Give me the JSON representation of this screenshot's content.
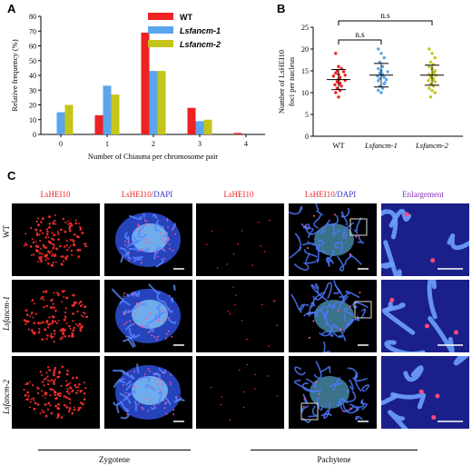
{
  "panels": {
    "a": "A",
    "b": "B",
    "c": "C"
  },
  "colors": {
    "wt": "#ee2222",
    "m1": "#5aa5ec",
    "m2": "#c4c41a",
    "red": "#ff3030",
    "blue": "#3f5fe8",
    "dapi_title": "#3333cc"
  },
  "chart_data": [
    {
      "type": "bar",
      "categories": [
        "0",
        "1",
        "2",
        "3",
        "4"
      ],
      "series": [
        {
          "name": "WT",
          "values": [
            0,
            13,
            69,
            18,
            1
          ]
        },
        {
          "name": "Lsfancm-1",
          "values": [
            15,
            33,
            43,
            9,
            0
          ]
        },
        {
          "name": "Lsfancm-2",
          "values": [
            20,
            27,
            43,
            10,
            0
          ]
        }
      ],
      "xlabel": "Number of Chiasma per chromosome pair",
      "ylabel": "Relative frequency (%)",
      "ylim": [
        0,
        80
      ],
      "yticks": [
        "0",
        "10",
        "20",
        "30",
        "40",
        "50",
        "60",
        "70",
        "80"
      ],
      "legend": "top-right"
    },
    {
      "type": "scatter",
      "categories": [
        "WT",
        "Lsfancm-1",
        "Lsfancm-2"
      ],
      "ylabel": "Number of LsHEI10 foci per nucleus",
      "ylim": [
        0,
        25
      ],
      "yticks": [
        "0",
        "5",
        "10",
        "15",
        "20",
        "25"
      ],
      "groups": [
        {
          "name": "WT",
          "mean": 13,
          "sd": 2.3,
          "points": [
            19,
            16,
            15.5,
            15,
            14.8,
            14.5,
            14.2,
            14,
            13.8,
            13.5,
            13.3,
            13,
            12.8,
            12.5,
            12.2,
            12,
            11.8,
            11.5,
            11,
            10.5,
            10,
            9
          ]
        },
        {
          "name": "Lsfancm-1",
          "mean": 14,
          "sd": 2.7,
          "points": [
            20,
            19,
            18,
            17,
            16,
            15.5,
            15,
            14.8,
            14.5,
            14.2,
            14,
            13.8,
            13.5,
            13.2,
            13,
            12.7,
            12.3,
            12,
            11.5,
            11,
            10.5,
            10
          ]
        },
        {
          "name": "Lsfancm-2",
          "mean": 14,
          "sd": 2.3,
          "points": [
            20,
            19,
            18,
            17,
            16.5,
            16,
            15.5,
            15,
            14.8,
            14.5,
            14.2,
            14,
            13.8,
            13.5,
            13.2,
            13,
            12.8,
            12.5,
            12,
            11.5,
            11,
            10.5,
            10,
            9
          ]
        }
      ],
      "annotations": [
        "n.s",
        "n.s"
      ]
    }
  ],
  "figC": {
    "columns": [
      {
        "text": "LsHEI10",
        "tone": "red"
      },
      {
        "text": "LsHEI10/DAPI",
        "tone": "mixed"
      },
      {
        "text": "LsHEI10",
        "tone": "red"
      },
      {
        "text": "LsHEI10/DAPI",
        "tone": "mixed"
      },
      {
        "text": "Enlargement",
        "tone": "purple"
      }
    ],
    "col_label_dapi": "/DAPI",
    "rows": [
      "WT",
      "Lsfancm-1",
      "Lsfancm-2"
    ],
    "stages": [
      "Zygotene",
      "Pachytene"
    ]
  }
}
